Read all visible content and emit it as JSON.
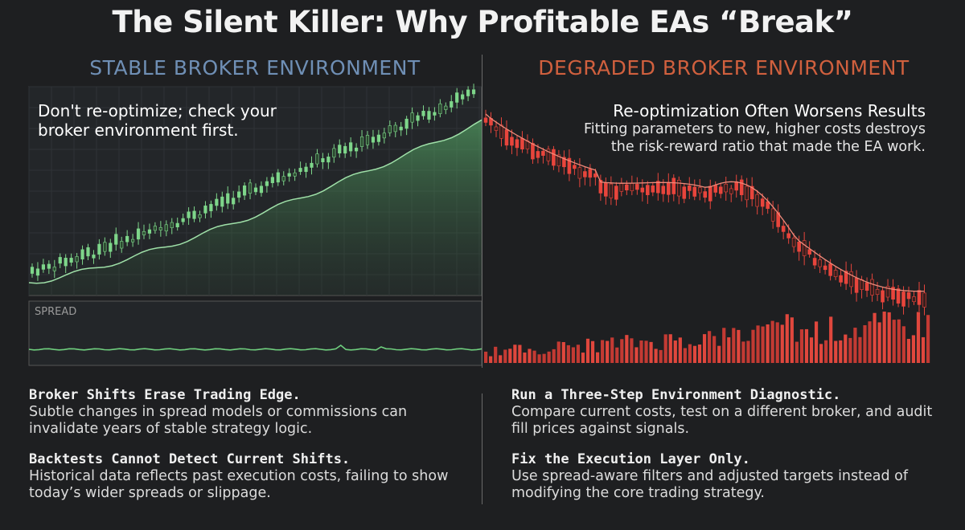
{
  "title": "The Silent Killer: Why Profitable EAs “Break”",
  "left": {
    "heading": "STABLE BROKER ENVIRONMENT",
    "note": "Don't re-optimize; check your broker environment first.",
    "spread_label": "SPREAD"
  },
  "right": {
    "heading": "DEGRADED BROKER ENVIRONMENT",
    "note_title": "Re-optimization Often Worsens Results",
    "note_body": "Fitting parameters to new, higher costs destroys the risk-reward ratio that made the EA work."
  },
  "blocks": [
    {
      "title": "Broker Shifts Erase Trading Edge.",
      "body": "Subtle changes in spread models or commissions can invalidate years of stable strategy logic."
    },
    {
      "title": "Backtests Cannot Detect Current Shifts.",
      "body": "Historical data reflects past execution costs, failing to show today’s wider spreads or slippage."
    },
    {
      "title": "Run a Three-Step Environment Diagnostic.",
      "body": "Compare current costs, test on a different broker, and audit fill prices against signals."
    },
    {
      "title": "Fix the Execution Layer Only.",
      "body": "Use spread-aware filters and adjusted targets instead of modifying the core trading strategy."
    }
  ],
  "colors": {
    "background": "#1e1f21",
    "stable_accent": "#6f8fb5",
    "degraded_accent": "#d0603e",
    "up_candle": "#7ed68a",
    "down_candle": "#e8453c"
  }
}
